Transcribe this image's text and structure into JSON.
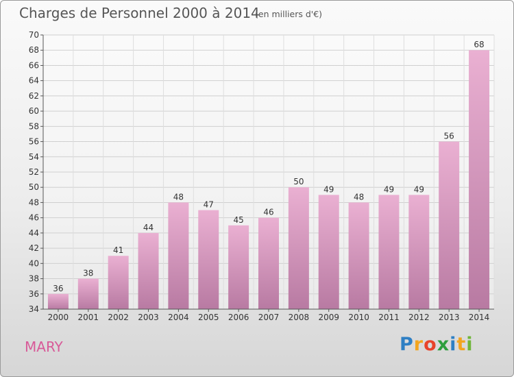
{
  "title": "Charges de Personnel 2000 à 2014",
  "subtitle": "(en milliers d'€)",
  "commune": "MARY",
  "logo": {
    "letters": [
      "P",
      "r",
      "o",
      "x",
      "i",
      "t",
      "i"
    ],
    "colors": [
      "#2e7fc4",
      "#f2a51f",
      "#e8432a",
      "#2e9e3e",
      "#2e7fc4",
      "#f2a51f",
      "#6fb63a"
    ]
  },
  "colors": {
    "bar_top": "#eab0d2",
    "bar_bottom": "#b87aa2",
    "accent": "#d85a98"
  },
  "chart_data": {
    "type": "bar",
    "categories": [
      "2000",
      "2001",
      "2002",
      "2003",
      "2004",
      "2005",
      "2006",
      "2007",
      "2008",
      "2009",
      "2010",
      "2011",
      "2012",
      "2013",
      "2014"
    ],
    "values": [
      36,
      38,
      41,
      44,
      48,
      47,
      45,
      46,
      50,
      49,
      48,
      49,
      49,
      56,
      68
    ],
    "ylim": [
      34,
      70
    ],
    "yticks": [
      34,
      36,
      38,
      40,
      42,
      44,
      46,
      48,
      50,
      52,
      54,
      56,
      58,
      60,
      62,
      64,
      66,
      68,
      70
    ],
    "grid": true,
    "data_labels": true
  }
}
